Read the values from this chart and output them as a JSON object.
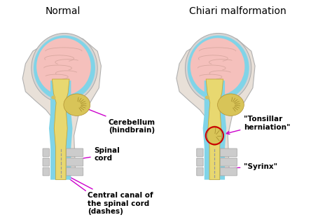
{
  "title_left": "Normal",
  "title_right": "Chiari malformation",
  "label_cerebellum": "Cerebellum\n(hindbrain)",
  "label_spinal_cord": "Spinal\ncord",
  "label_central_canal": "Central canal of\nthe spinal cord\n(dashes)",
  "label_tonsillar": "\"Tonsillar\nherniation\"",
  "label_syrinx": "\"Syrinx\"",
  "bg_color": "#ffffff",
  "skin_color": "#e8e0d8",
  "face_outline": "#b0b0b0",
  "brain_pink": "#f5c0bc",
  "csf_blue": "#80d4e8",
  "brain_yellow": "#e8d870",
  "cerebellum_yellow": "#d8c458",
  "skull_gray": "#d4d4d4",
  "vertebra_gray": "#cccccc",
  "arrow_color": "#cc00cc",
  "circle_color": "#cc0000",
  "text_color": "#000000",
  "gyri_color": "#d8a8a0",
  "title_fontsize": 10,
  "label_fontsize": 7.5,
  "label_fontsize_bold": true
}
